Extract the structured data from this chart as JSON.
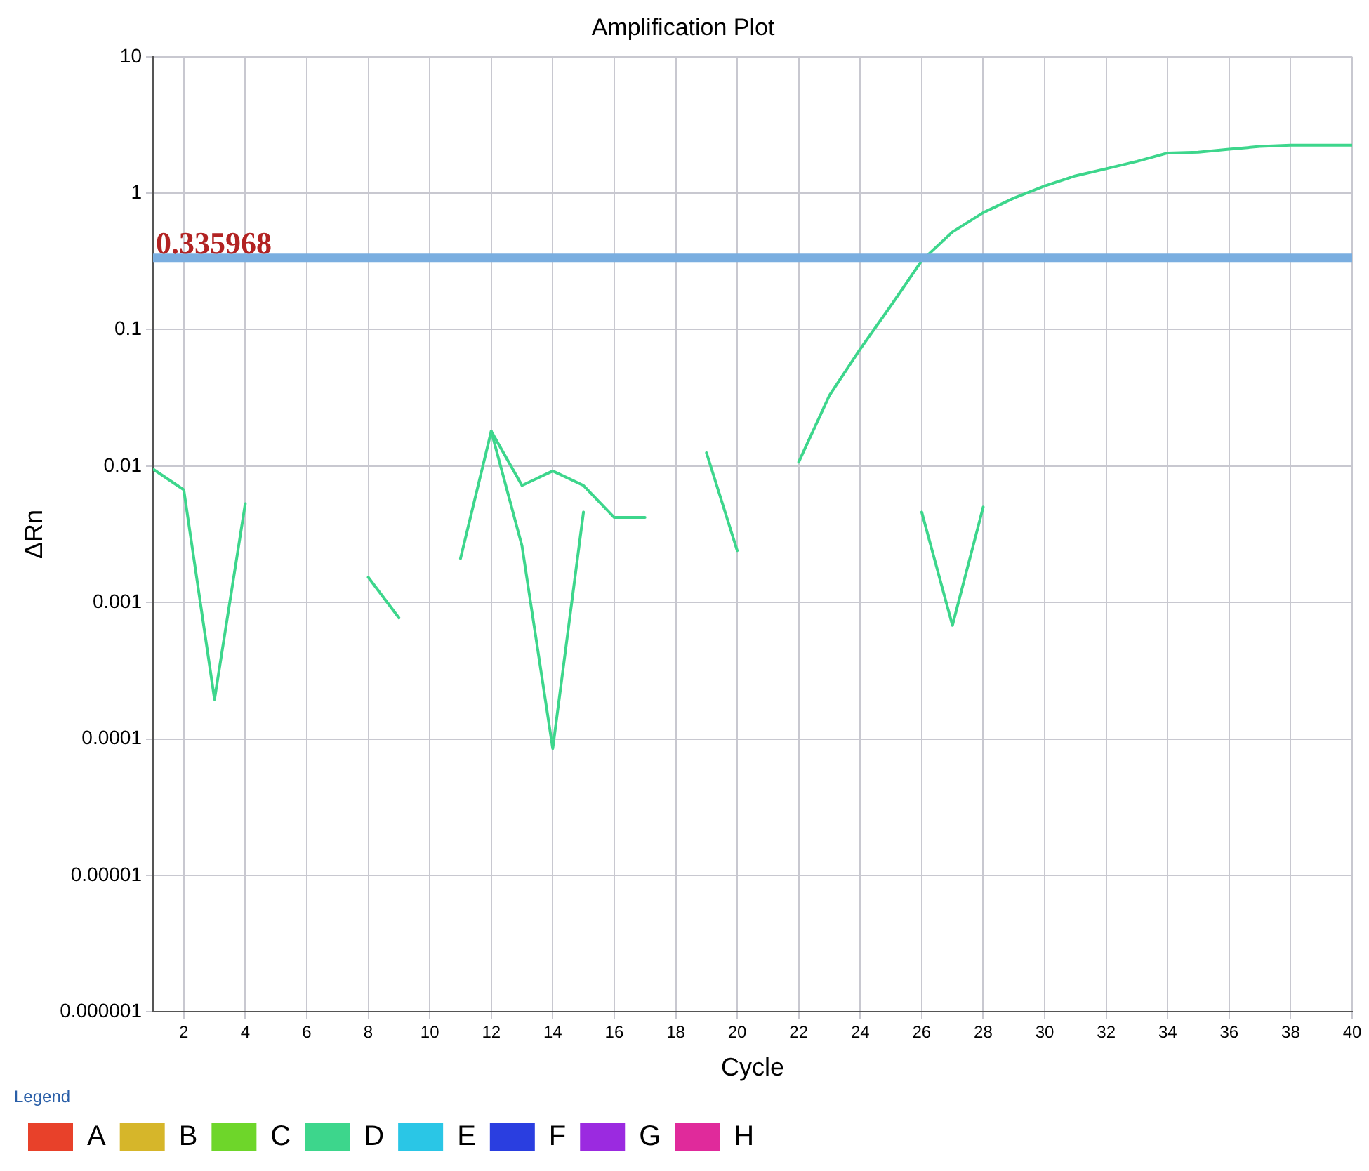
{
  "chart_data": {
    "type": "line",
    "title": "Amplification Plot",
    "xlabel": "Cycle",
    "ylabel": "ΔRn",
    "legend_title": "Legend",
    "x": [
      1,
      2,
      3,
      4,
      5,
      6,
      7,
      8,
      9,
      10,
      11,
      12,
      13,
      14,
      15,
      16,
      17,
      18,
      19,
      20,
      21,
      22,
      23,
      24,
      25,
      26,
      27,
      28,
      29,
      30,
      31,
      32,
      33,
      34,
      35,
      36,
      37,
      38,
      39,
      40
    ],
    "series": [
      {
        "name": "A",
        "color": "#e8412a",
        "values": [
          null,
          null,
          null,
          null,
          null,
          null,
          null,
          null,
          null,
          null,
          null,
          null,
          null,
          null,
          null,
          null,
          null,
          null,
          null,
          null,
          null,
          null,
          null,
          null,
          null,
          null,
          null,
          null,
          null,
          null,
          null,
          null,
          null,
          null,
          null,
          null,
          null,
          null,
          null,
          null
        ]
      },
      {
        "name": "B",
        "color": "#d6b62a",
        "values": [
          null,
          null,
          null,
          null,
          null,
          null,
          null,
          null,
          null,
          null,
          null,
          null,
          null,
          null,
          null,
          null,
          null,
          null,
          null,
          null,
          null,
          null,
          null,
          null,
          null,
          null,
          null,
          null,
          null,
          null,
          null,
          null,
          null,
          null,
          null,
          null,
          null,
          null,
          null,
          null
        ]
      },
      {
        "name": "C",
        "color": "#6ed62a",
        "values": [
          null,
          null,
          null,
          null,
          null,
          null,
          null,
          null,
          null,
          null,
          null,
          null,
          null,
          null,
          null,
          null,
          null,
          null,
          null,
          null,
          null,
          null,
          null,
          null,
          null,
          null,
          null,
          null,
          null,
          null,
          null,
          null,
          null,
          null,
          null,
          null,
          null,
          null,
          null,
          null
        ]
      },
      {
        "name": "D",
        "color": "#3dd68c",
        "values": [
          0.0095,
          0.0067,
          0.000195,
          0.0053,
          null,
          null,
          null,
          0.00153,
          0.00077,
          null,
          0.0021,
          0.018,
          0.0072,
          0.0092,
          0.0072,
          0.0042,
          0.0042,
          null,
          0.0125,
          0.0024,
          null,
          0.0107,
          0.033,
          0.072,
          0.15,
          0.32,
          0.52,
          0.72,
          0.92,
          1.13,
          1.34,
          1.51,
          1.71,
          1.97,
          2.0,
          2.1,
          2.2,
          2.25,
          2.25,
          2.25
        ]
      },
      {
        "color": "#3dd68c",
        "values": [
          null,
          null,
          null,
          null,
          null,
          null,
          null,
          null,
          null,
          null,
          null,
          0.018,
          0.0026,
          8.5e-05,
          0.0046,
          null,
          null,
          null,
          null,
          null,
          null,
          null,
          null,
          null,
          null,
          0.0046,
          0.00068,
          0.005,
          null,
          null,
          null,
          null,
          null,
          null,
          null,
          null,
          null,
          null,
          null,
          null
        ]
      },
      {
        "name": "E",
        "color": "#2ac6e6",
        "values": [
          null,
          null,
          null,
          null,
          null,
          null,
          null,
          null,
          null,
          null,
          null,
          null,
          null,
          null,
          null,
          null,
          null,
          null,
          null,
          null,
          null,
          null,
          null,
          null,
          null,
          null,
          null,
          null,
          null,
          null,
          null,
          null,
          null,
          null,
          null,
          null,
          null,
          null,
          null,
          null
        ]
      },
      {
        "name": "F",
        "color": "#2a3ee0",
        "values": [
          null,
          null,
          null,
          null,
          null,
          null,
          null,
          null,
          null,
          null,
          null,
          null,
          null,
          null,
          null,
          null,
          null,
          null,
          null,
          null,
          null,
          null,
          null,
          null,
          null,
          null,
          null,
          null,
          null,
          null,
          null,
          null,
          null,
          null,
          null,
          null,
          null,
          null,
          null,
          null
        ]
      },
      {
        "name": "G",
        "color": "#9b2ae0",
        "values": [
          null,
          null,
          null,
          null,
          null,
          null,
          null,
          null,
          null,
          null,
          null,
          null,
          null,
          null,
          null,
          null,
          null,
          null,
          null,
          null,
          null,
          null,
          null,
          null,
          null,
          null,
          null,
          null,
          null,
          null,
          null,
          null,
          null,
          null,
          null,
          null,
          null,
          null,
          null,
          null
        ]
      },
      {
        "name": "H",
        "color": "#e02a9b",
        "values": [
          null,
          null,
          null,
          null,
          null,
          null,
          null,
          null,
          null,
          null,
          null,
          null,
          null,
          null,
          null,
          null,
          null,
          null,
          null,
          null,
          null,
          null,
          null,
          null,
          null,
          null,
          null,
          null,
          null,
          null,
          null,
          null,
          null,
          null,
          null,
          null,
          null,
          null,
          null,
          null
        ]
      }
    ],
    "log": "y",
    "xlim": [
      1,
      40
    ],
    "xticks": [
      2,
      4,
      6,
      8,
      10,
      12,
      14,
      16,
      18,
      20,
      22,
      24,
      26,
      28,
      30,
      32,
      34,
      36,
      38,
      40
    ],
    "ylim": [
      1e-06,
      10
    ],
    "yticks": [
      {
        "value": 1e-06,
        "label": "0.000001"
      },
      {
        "value": 1e-05,
        "label": "0.00001"
      },
      0.0001,
      0.001,
      0.01,
      0.1,
      1,
      10
    ],
    "ref_lines": [
      {
        "axis": "y",
        "value": 0.335968,
        "label": "0.335968",
        "color": "#7aaee0"
      }
    ],
    "grid": true,
    "legend": "bottom left",
    "marker": "none",
    "line_style": "solid"
  }
}
